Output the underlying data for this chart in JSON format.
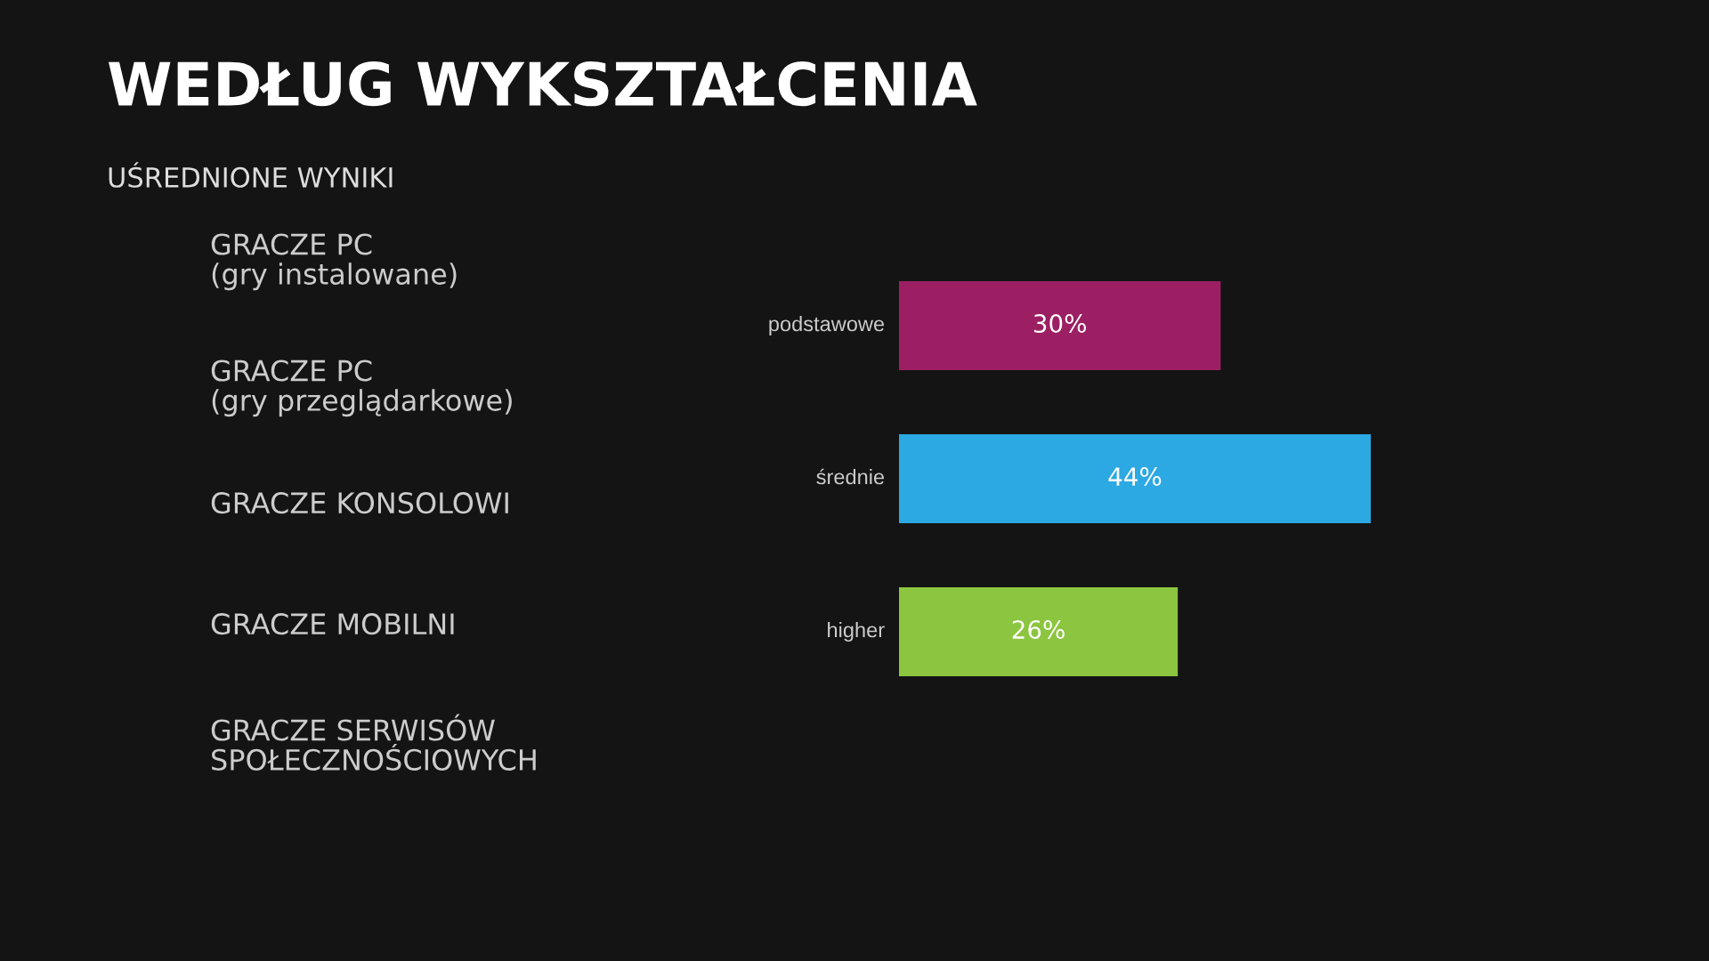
{
  "chart_data": {
    "type": "bar",
    "orientation": "horizontal",
    "title": "WEDŁUG WYKSZTAŁCENIA",
    "subtitle": "UŚREDNIONE WYNIKI",
    "categories": [
      "podstawowe",
      "średnie",
      "higher"
    ],
    "values": [
      30,
      44,
      26
    ],
    "colors": [
      "#9c1f63",
      "#2ca8e2",
      "#8cc53f"
    ],
    "value_labels": [
      "30%",
      "44%",
      "26%"
    ],
    "annotations": [
      "GRACZE PC\n(gry instalowane)",
      "GRACZE PC\n(gry przeglądarkowe)",
      "GRACZE KONSOLOWI",
      "GRACZE MOBILNI",
      "GRACZE SERWISÓW\nSPOŁECZNOŚCIOWYCH"
    ],
    "legend": false
  }
}
